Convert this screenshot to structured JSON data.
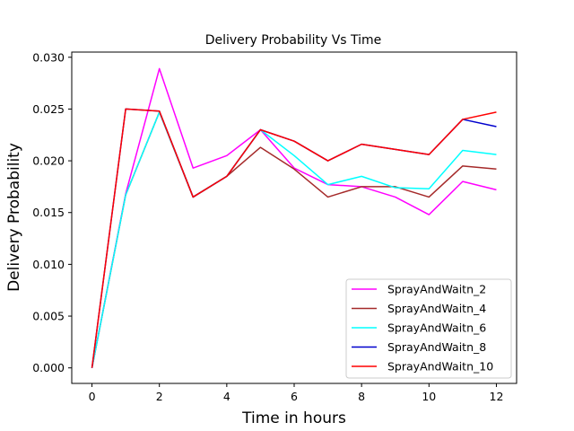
{
  "chart_data": {
    "type": "line",
    "title": "Delivery Probability Vs Time",
    "xlabel": "Time in hours",
    "ylabel": "Delivery Probability",
    "xlim": [
      -0.6,
      12.6
    ],
    "ylim": [
      -0.0015,
      0.0305
    ],
    "x": [
      0,
      1,
      2,
      3,
      4,
      5,
      6,
      7,
      8,
      9,
      10,
      11,
      12
    ],
    "xticks": [
      0,
      2,
      4,
      6,
      8,
      10,
      12
    ],
    "xtick_labels": [
      "0",
      "2",
      "4",
      "6",
      "8",
      "10",
      "12"
    ],
    "yticks": [
      0.0,
      0.005,
      0.01,
      0.015,
      0.02,
      0.025,
      0.03
    ],
    "ytick_labels": [
      "0.000",
      "0.005",
      "0.010",
      "0.015",
      "0.020",
      "0.025",
      "0.030"
    ],
    "grid": false,
    "legend_position": "lower-right",
    "series": [
      {
        "name": "SprayAndWaitn_2",
        "color": "#ff00ff",
        "values": [
          0.0,
          0.0168,
          0.0289,
          0.0193,
          0.0205,
          0.023,
          0.0193,
          0.0177,
          0.0175,
          0.0165,
          0.0148,
          0.018,
          0.0172
        ]
      },
      {
        "name": "SprayAndWaitn_4",
        "color": "#a52a2a",
        "values": [
          0.0,
          0.0167,
          0.0247,
          0.0165,
          0.0185,
          0.0213,
          0.0192,
          0.0165,
          0.0175,
          0.0175,
          0.0165,
          0.0195,
          0.0192
        ]
      },
      {
        "name": "SprayAndWaitn_6",
        "color": "#00ffff",
        "values": [
          0.0,
          0.0167,
          0.0247,
          0.0165,
          0.0185,
          0.023,
          0.0205,
          0.0177,
          0.0185,
          0.0174,
          0.0173,
          0.021,
          0.0206
        ]
      },
      {
        "name": "SprayAndWaitn_8",
        "color": "#0000cd",
        "values": [
          0.0,
          0.025,
          0.0248,
          0.0165,
          0.0185,
          0.023,
          0.0219,
          0.02,
          0.0216,
          0.0211,
          0.0206,
          0.024,
          0.0233
        ]
      },
      {
        "name": "SprayAndWaitn_10",
        "color": "#ff0000",
        "values": [
          0.0,
          0.025,
          0.0248,
          0.0165,
          0.0185,
          0.023,
          0.0219,
          0.02,
          0.0216,
          0.0211,
          0.0206,
          0.024,
          0.0247
        ]
      }
    ]
  }
}
